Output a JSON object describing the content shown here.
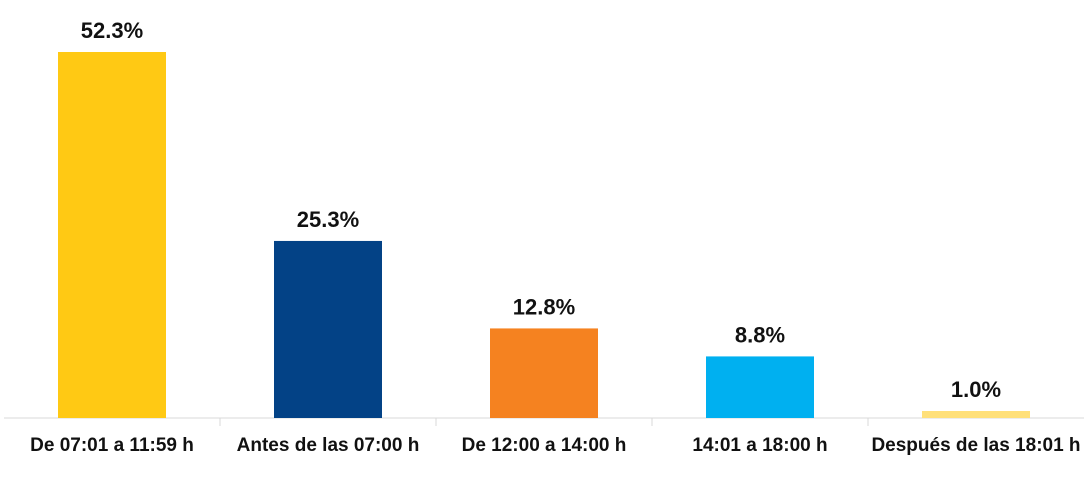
{
  "chart_data": {
    "type": "bar",
    "categories": [
      "De 07:01 a 11:59 h",
      "Antes de las 07:00 h",
      "De 12:00 a 14:00 h",
      "14:01 a 18:00 h",
      "Después de las 18:01 h"
    ],
    "values": [
      52.3,
      25.3,
      12.8,
      8.8,
      1.0
    ],
    "value_labels": [
      "52.3%",
      "25.3%",
      "12.8%",
      "8.8%",
      "1.0%"
    ],
    "colors": [
      "#FFC914",
      "#034286",
      "#F58220",
      "#00B0F0",
      "#FFE07A"
    ]
  }
}
